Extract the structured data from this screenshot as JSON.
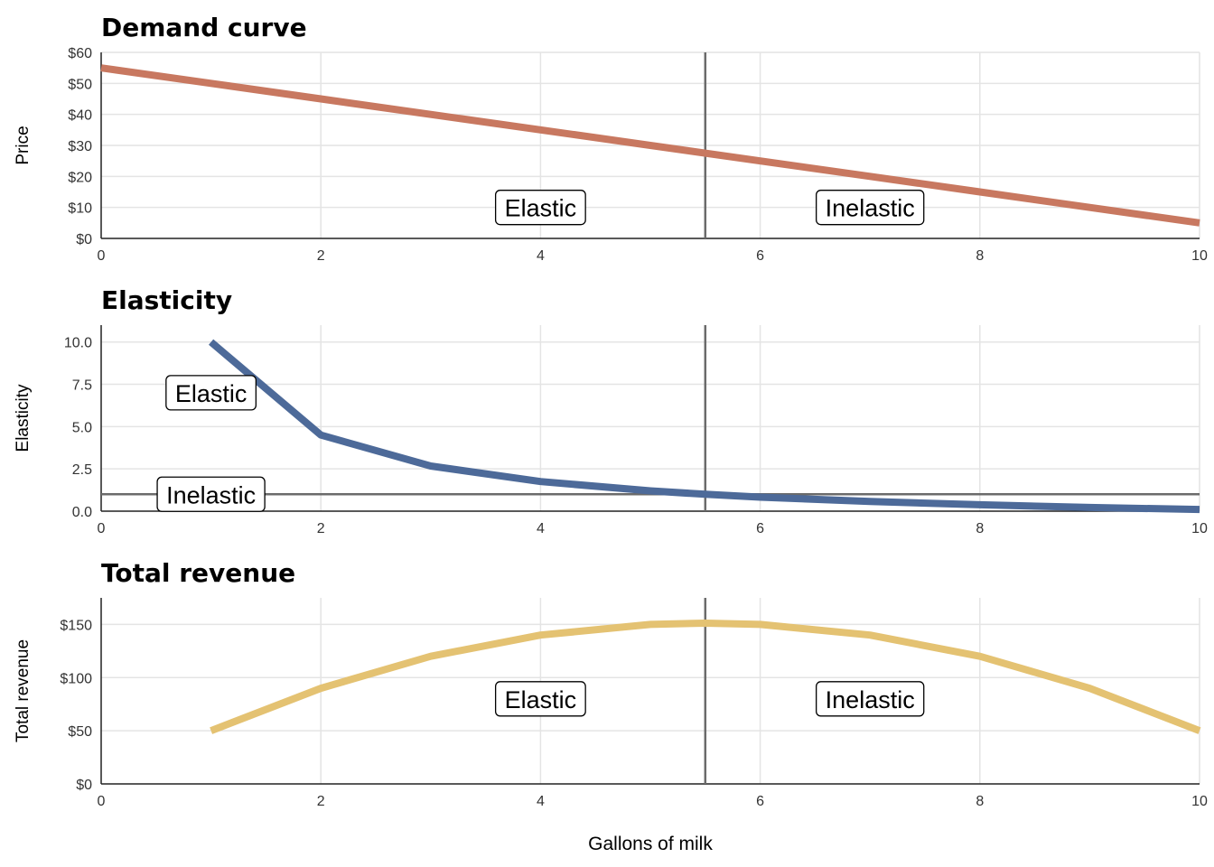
{
  "xlabel": "Gallons of milk",
  "chart_data": [
    {
      "type": "line",
      "title": "Demand curve",
      "ylabel": "Price",
      "xlim": [
        0,
        10
      ],
      "ylim": [
        0,
        60
      ],
      "x_ticks": [
        "0",
        "2",
        "4",
        "6",
        "8",
        "10"
      ],
      "y_ticks": [
        "$0",
        "$10",
        "$20",
        "$30",
        "$40",
        "$50",
        "$60"
      ],
      "y_tick_values": [
        0,
        10,
        20,
        30,
        40,
        50,
        60
      ],
      "grid": true,
      "vline_x": 5.5,
      "color": "#c87860",
      "series": [
        {
          "x": [
            0,
            1,
            2,
            3,
            4,
            5,
            6,
            7,
            8,
            9,
            10
          ],
          "y": [
            55,
            50,
            45,
            40,
            35,
            30,
            25,
            20,
            15,
            10,
            5
          ]
        }
      ],
      "annotations": [
        {
          "text": "Elastic",
          "x": 4,
          "y": 10
        },
        {
          "text": "Inelastic",
          "x": 7,
          "y": 10
        }
      ]
    },
    {
      "type": "line",
      "title": "Elasticity",
      "ylabel": "Elasticity",
      "xlim": [
        0,
        10
      ],
      "ylim": [
        0,
        11
      ],
      "x_ticks": [
        "0",
        "2",
        "4",
        "6",
        "8",
        "10"
      ],
      "y_ticks": [
        "0.0",
        "2.5",
        "5.0",
        "7.5",
        "10.0"
      ],
      "y_tick_values": [
        0,
        2.5,
        5,
        7.5,
        10
      ],
      "grid": true,
      "vline_x": 5.5,
      "hline_y": 1,
      "color": "#4d6a99",
      "series": [
        {
          "x": [
            1,
            2,
            3,
            4,
            5,
            5.5,
            6,
            7,
            8,
            9,
            10
          ],
          "y": [
            10,
            4.5,
            2.67,
            1.75,
            1.2,
            1.0,
            0.83,
            0.57,
            0.38,
            0.22,
            0.1
          ]
        }
      ],
      "annotations": [
        {
          "text": "Elastic",
          "x": 1,
          "y": 7
        },
        {
          "text": "Inelastic",
          "x": 1,
          "y": 1
        }
      ]
    },
    {
      "type": "line",
      "title": "Total revenue",
      "ylabel": "Total revenue",
      "xlim": [
        0,
        10
      ],
      "ylim": [
        0,
        175
      ],
      "x_ticks": [
        "0",
        "2",
        "4",
        "6",
        "8",
        "10"
      ],
      "y_ticks": [
        "$0",
        "$50",
        "$100",
        "$150"
      ],
      "y_tick_values": [
        0,
        50,
        100,
        150
      ],
      "grid": true,
      "vline_x": 5.5,
      "color": "#e4c272",
      "series": [
        {
          "x": [
            1,
            2,
            3,
            4,
            5,
            5.5,
            6,
            7,
            8,
            9,
            10
          ],
          "y": [
            50,
            90,
            120,
            140,
            150,
            151.25,
            150,
            140,
            120,
            90,
            50
          ]
        }
      ],
      "annotations": [
        {
          "text": "Elastic",
          "x": 4,
          "y": 80
        },
        {
          "text": "Inelastic",
          "x": 7,
          "y": 80
        }
      ]
    }
  ]
}
